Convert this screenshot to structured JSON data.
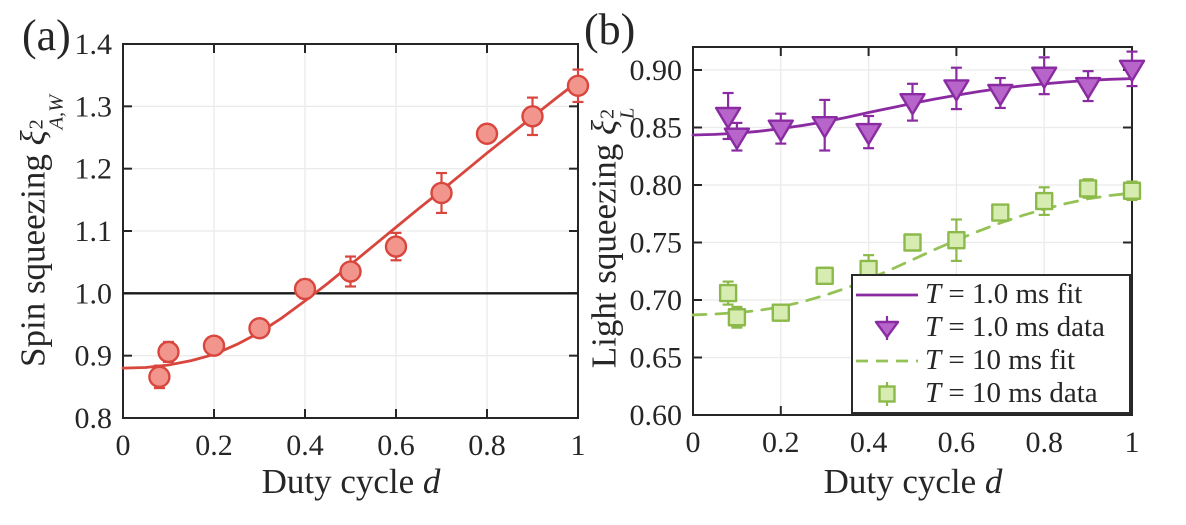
{
  "panels": [
    {
      "label": "(a)",
      "xlabel": {
        "text": "Duty cycle ",
        "var": "d"
      },
      "ylabel": {
        "text": "Spin squeezing ",
        "symbol": "ξ",
        "sup": "2",
        "sub": "A,W"
      }
    },
    {
      "label": "(b)",
      "xlabel": {
        "text": "Duty cycle ",
        "var": "d"
      },
      "ylabel": {
        "text": "Light squeezing ",
        "symbol": "ξ",
        "sup": "2",
        "sub": "L"
      }
    }
  ],
  "chart_data": [
    {
      "id": "a",
      "type": "scatter",
      "title": "",
      "xlabel": "Duty cycle d",
      "ylabel": "Spin squeezing xi^2_A,W",
      "xlim": [
        0,
        1
      ],
      "ylim": [
        0.8,
        1.4
      ],
      "xticks": [
        0,
        0.2,
        0.4,
        0.6,
        0.8,
        1
      ],
      "xtick_labels": [
        "0",
        "0.2",
        "0.4",
        "0.6",
        "0.8",
        "1"
      ],
      "yticks": [
        0.8,
        0.9,
        1.0,
        1.1,
        1.2,
        1.3,
        1.4
      ],
      "ytick_labels": [
        "0.8",
        "0.9",
        "1.0",
        "1.1",
        "1.2",
        "1.3",
        "1.4"
      ],
      "grid": true,
      "grid_color": "#ebebeb",
      "frame_color": "#262626",
      "reference_lines": [
        {
          "y": 1.0,
          "color": "#1a1a1a",
          "width": 2.4
        }
      ],
      "series": [
        {
          "name": "fit",
          "role": "fit",
          "color": "#d8463d",
          "dash": "",
          "x": [
            0,
            0.05,
            0.1,
            0.15,
            0.2,
            0.25,
            0.3,
            0.35,
            0.4,
            0.45,
            0.5,
            0.55,
            0.6,
            0.65,
            0.7,
            0.75,
            0.8,
            0.85,
            0.9,
            0.95,
            1.0
          ],
          "y": [
            0.88,
            0.881,
            0.885,
            0.892,
            0.902,
            0.918,
            0.937,
            0.961,
            0.988,
            1.016,
            1.046,
            1.076,
            1.106,
            1.136,
            1.165,
            1.195,
            1.225,
            1.254,
            1.283,
            1.312,
            1.34
          ]
        },
        {
          "name": "data",
          "role": "data",
          "marker": "circle",
          "edge_color": "#d8463d",
          "fill_color": "#f2958d",
          "x": [
            0.08,
            0.1,
            0.2,
            0.3,
            0.4,
            0.5,
            0.6,
            0.7,
            0.8,
            0.9,
            1.0
          ],
          "y": [
            0.866,
            0.906,
            0.916,
            0.944,
            1.007,
            1.035,
            1.075,
            1.161,
            1.256,
            1.284,
            1.333
          ],
          "yerr": [
            0.018,
            0.016,
            0.013,
            0.01,
            0.015,
            0.024,
            0.022,
            0.032,
            0.012,
            0.03,
            0.026
          ]
        }
      ]
    },
    {
      "id": "b",
      "type": "scatter",
      "title": "",
      "xlabel": "Duty cycle d",
      "ylabel": "Light squeezing xi^2_L",
      "xlim": [
        0,
        1
      ],
      "ylim": [
        0.6,
        0.92
      ],
      "xticks": [
        0,
        0.2,
        0.4,
        0.6,
        0.8,
        1
      ],
      "xtick_labels": [
        "0",
        "0.2",
        "0.4",
        "0.6",
        "0.8",
        "1"
      ],
      "yticks": [
        0.6,
        0.65,
        0.7,
        0.75,
        0.8,
        0.85,
        0.9
      ],
      "ytick_labels": [
        "0.60",
        "0.65",
        "0.70",
        "0.75",
        "0.80",
        "0.85",
        "0.90"
      ],
      "grid": true,
      "grid_color": "#ebebeb",
      "frame_color": "#262626",
      "reference_lines": [],
      "series": [
        {
          "name": "T = 1.0 ms fit",
          "role": "fit",
          "color": "#8a2ba2",
          "dash": "",
          "x": [
            0,
            0.05,
            0.1,
            0.15,
            0.2,
            0.25,
            0.3,
            0.35,
            0.4,
            0.45,
            0.5,
            0.55,
            0.6,
            0.65,
            0.7,
            0.75,
            0.8,
            0.85,
            0.9,
            0.95,
            1.0
          ],
          "y": [
            0.8435,
            0.844,
            0.845,
            0.8467,
            0.849,
            0.8518,
            0.855,
            0.8588,
            0.863,
            0.867,
            0.871,
            0.8747,
            0.878,
            0.8812,
            0.884,
            0.8862,
            0.888,
            0.8896,
            0.891,
            0.8919,
            0.8925
          ]
        },
        {
          "name": "T = 1.0 ms data",
          "role": "data",
          "marker": "triangle-down",
          "edge_color": "#8a2ba2",
          "fill_color": "#b865cb",
          "x": [
            0.08,
            0.1,
            0.2,
            0.3,
            0.4,
            0.5,
            0.6,
            0.7,
            0.8,
            0.9,
            1.0
          ],
          "y": [
            0.86,
            0.842,
            0.849,
            0.852,
            0.846,
            0.872,
            0.884,
            0.88,
            0.895,
            0.886,
            0.901
          ],
          "yerr": [
            0.02,
            0.012,
            0.013,
            0.022,
            0.014,
            0.016,
            0.018,
            0.013,
            0.016,
            0.013,
            0.015
          ]
        },
        {
          "name": "T = 10 ms fit",
          "role": "fit",
          "color": "#94c254",
          "dash": "13 10",
          "x": [
            0,
            0.05,
            0.1,
            0.15,
            0.2,
            0.25,
            0.3,
            0.35,
            0.4,
            0.45,
            0.5,
            0.55,
            0.6,
            0.65,
            0.7,
            0.75,
            0.8,
            0.85,
            0.9,
            0.95,
            1.0
          ],
          "y": [
            0.687,
            0.6878,
            0.689,
            0.691,
            0.694,
            0.6985,
            0.704,
            0.7105,
            0.718,
            0.7263,
            0.735,
            0.7438,
            0.752,
            0.7598,
            0.767,
            0.7734,
            0.779,
            0.7839,
            0.788,
            0.7909,
            0.793
          ]
        },
        {
          "name": "T = 10 ms data",
          "role": "data",
          "marker": "square",
          "edge_color": "#8cba4a",
          "fill_color": "#d7ecb0",
          "x": [
            0.08,
            0.1,
            0.2,
            0.3,
            0.4,
            0.5,
            0.6,
            0.7,
            0.8,
            0.9,
            1.0
          ],
          "y": [
            0.706,
            0.685,
            0.689,
            0.721,
            0.727,
            0.75,
            0.752,
            0.776,
            0.786,
            0.797,
            0.795
          ],
          "yerr": [
            0.01,
            0.009,
            0.007,
            0.007,
            0.012,
            0.006,
            0.018,
            0.004,
            0.012,
            0.008,
            0.008
          ]
        }
      ],
      "legend": {
        "position": "lower right",
        "items": [
          {
            "swatch": "line-solid",
            "color": "#8a2ba2",
            "fill": "#b865cb",
            "var": "T",
            "rest": " = 1.0 ms fit"
          },
          {
            "swatch": "marker-triangle",
            "color": "#8a2ba2",
            "fill": "#b865cb",
            "var": "T",
            "rest": " = 1.0 ms data"
          },
          {
            "swatch": "line-dashed",
            "color": "#94c254",
            "fill": "#d7ecb0",
            "var": "T",
            "rest": " = 10 ms fit"
          },
          {
            "swatch": "marker-square",
            "color": "#8cba4a",
            "fill": "#d7ecb0",
            "var": "T",
            "rest": " = 10 ms data"
          }
        ]
      }
    }
  ]
}
